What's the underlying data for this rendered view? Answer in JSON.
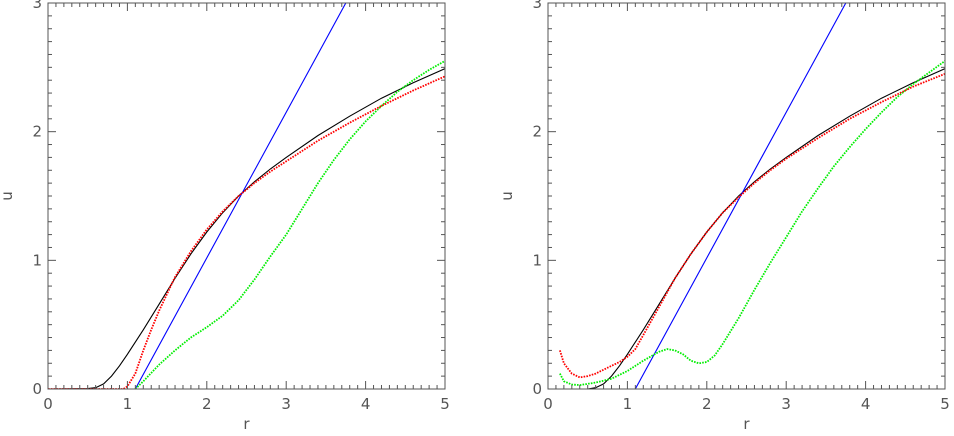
{
  "chart_data": [
    {
      "type": "line",
      "title": "",
      "xlabel": "r",
      "ylabel": "u",
      "xlim": [
        0,
        5
      ],
      "ylim": [
        0,
        3
      ],
      "x_ticks": [
        "0",
        "1",
        "2",
        "3",
        "4",
        "5"
      ],
      "y_ticks": [
        "0",
        "1",
        "2",
        "3"
      ],
      "grid": false,
      "series": [
        {
          "color": "#000000",
          "style": "solid",
          "points": [
            [
              0,
              0
            ],
            [
              0.5,
              0.003
            ],
            [
              0.6,
              0.01
            ],
            [
              0.7,
              0.04
            ],
            [
              0.8,
              0.1
            ],
            [
              0.9,
              0.18
            ],
            [
              1.0,
              0.27
            ],
            [
              1.2,
              0.46
            ],
            [
              1.4,
              0.66
            ],
            [
              1.6,
              0.86
            ],
            [
              1.8,
              1.05
            ],
            [
              2.0,
              1.22
            ],
            [
              2.2,
              1.37
            ],
            [
              2.4,
              1.5
            ],
            [
              2.6,
              1.61
            ],
            [
              2.8,
              1.71
            ],
            [
              3.0,
              1.8
            ],
            [
              3.4,
              1.97
            ],
            [
              3.8,
              2.12
            ],
            [
              4.2,
              2.26
            ],
            [
              4.6,
              2.38
            ],
            [
              5.0,
              2.49
            ]
          ]
        },
        {
          "color": "#0000ff",
          "style": "solid",
          "points": [
            [
              1.1,
              0
            ],
            [
              3.75,
              3
            ]
          ]
        },
        {
          "color": "#00ee00",
          "style": "dotted",
          "points": [
            [
              1.1,
              0
            ],
            [
              1.2,
              0.06
            ],
            [
              1.4,
              0.19
            ],
            [
              1.6,
              0.3
            ],
            [
              1.8,
              0.4
            ],
            [
              2.0,
              0.48
            ],
            [
              2.2,
              0.57
            ],
            [
              2.4,
              0.69
            ],
            [
              2.6,
              0.85
            ],
            [
              2.8,
              1.03
            ],
            [
              3.0,
              1.2
            ],
            [
              3.2,
              1.4
            ],
            [
              3.4,
              1.6
            ],
            [
              3.6,
              1.78
            ],
            [
              3.8,
              1.94
            ],
            [
              4.0,
              2.08
            ],
            [
              4.2,
              2.2
            ],
            [
              4.4,
              2.31
            ],
            [
              4.6,
              2.4
            ],
            [
              4.8,
              2.48
            ],
            [
              5.0,
              2.55
            ]
          ]
        },
        {
          "color": "#ff0000",
          "style": "dotted",
          "points": [
            [
              0,
              0
            ],
            [
              0.95,
              0
            ],
            [
              1.0,
              0.02
            ],
            [
              1.1,
              0.12
            ],
            [
              1.2,
              0.3
            ],
            [
              1.3,
              0.46
            ],
            [
              1.4,
              0.61
            ],
            [
              1.6,
              0.87
            ],
            [
              1.8,
              1.07
            ],
            [
              2.0,
              1.24
            ],
            [
              2.2,
              1.38
            ],
            [
              2.4,
              1.5
            ],
            [
              2.6,
              1.6
            ],
            [
              2.8,
              1.69
            ],
            [
              3.0,
              1.77
            ],
            [
              3.4,
              1.93
            ],
            [
              3.8,
              2.07
            ],
            [
              4.2,
              2.2
            ],
            [
              4.6,
              2.32
            ],
            [
              5.0,
              2.43
            ]
          ]
        }
      ]
    },
    {
      "type": "line",
      "title": "",
      "xlabel": "r",
      "ylabel": "u",
      "xlim": [
        0,
        5
      ],
      "ylim": [
        0,
        3
      ],
      "x_ticks": [
        "0",
        "1",
        "2",
        "3",
        "4",
        "5"
      ],
      "y_ticks": [
        "0",
        "1",
        "2",
        "3"
      ],
      "grid": false,
      "series": [
        {
          "color": "#000000",
          "style": "solid",
          "points": [
            [
              0.5,
              0
            ],
            [
              0.6,
              0.01
            ],
            [
              0.7,
              0.04
            ],
            [
              0.8,
              0.1
            ],
            [
              0.9,
              0.18
            ],
            [
              1.0,
              0.27
            ],
            [
              1.2,
              0.46
            ],
            [
              1.4,
              0.66
            ],
            [
              1.6,
              0.86
            ],
            [
              1.8,
              1.05
            ],
            [
              2.0,
              1.22
            ],
            [
              2.2,
              1.37
            ],
            [
              2.4,
              1.5
            ],
            [
              2.6,
              1.61
            ],
            [
              2.8,
              1.71
            ],
            [
              3.0,
              1.8
            ],
            [
              3.4,
              1.97
            ],
            [
              3.8,
              2.12
            ],
            [
              4.2,
              2.26
            ],
            [
              4.6,
              2.38
            ],
            [
              5.0,
              2.49
            ]
          ]
        },
        {
          "color": "#0000ff",
          "style": "solid",
          "points": [
            [
              1.1,
              0
            ],
            [
              3.75,
              3
            ]
          ]
        },
        {
          "color": "#00ee00",
          "style": "dotted",
          "points": [
            [
              0.15,
              0.12
            ],
            [
              0.2,
              0.06
            ],
            [
              0.3,
              0.035
            ],
            [
              0.4,
              0.03
            ],
            [
              0.6,
              0.05
            ],
            [
              0.8,
              0.08
            ],
            [
              1.0,
              0.14
            ],
            [
              1.2,
              0.22
            ],
            [
              1.4,
              0.29
            ],
            [
              1.5,
              0.31
            ],
            [
              1.6,
              0.3
            ],
            [
              1.7,
              0.27
            ],
            [
              1.8,
              0.22
            ],
            [
              1.9,
              0.2
            ],
            [
              2.0,
              0.21
            ],
            [
              2.1,
              0.26
            ],
            [
              2.2,
              0.35
            ],
            [
              2.4,
              0.55
            ],
            [
              2.6,
              0.77
            ],
            [
              2.8,
              0.98
            ],
            [
              3.0,
              1.18
            ],
            [
              3.2,
              1.38
            ],
            [
              3.4,
              1.56
            ],
            [
              3.6,
              1.73
            ],
            [
              3.8,
              1.88
            ],
            [
              4.0,
              2.02
            ],
            [
              4.2,
              2.15
            ],
            [
              4.4,
              2.27
            ],
            [
              4.6,
              2.37
            ],
            [
              4.8,
              2.46
            ],
            [
              5.0,
              2.55
            ]
          ]
        },
        {
          "color": "#ff0000",
          "style": "dotted",
          "points": [
            [
              0.15,
              0.3
            ],
            [
              0.2,
              0.2
            ],
            [
              0.3,
              0.12
            ],
            [
              0.4,
              0.09
            ],
            [
              0.5,
              0.1
            ],
            [
              0.6,
              0.12
            ],
            [
              0.7,
              0.15
            ],
            [
              0.8,
              0.18
            ],
            [
              0.9,
              0.21
            ],
            [
              1.0,
              0.25
            ],
            [
              1.1,
              0.31
            ],
            [
              1.2,
              0.42
            ],
            [
              1.4,
              0.64
            ],
            [
              1.6,
              0.86
            ],
            [
              1.8,
              1.05
            ],
            [
              2.0,
              1.22
            ],
            [
              2.2,
              1.37
            ],
            [
              2.4,
              1.49
            ],
            [
              2.6,
              1.6
            ],
            [
              2.8,
              1.7
            ],
            [
              3.0,
              1.79
            ],
            [
              3.4,
              1.95
            ],
            [
              3.8,
              2.1
            ],
            [
              4.2,
              2.23
            ],
            [
              4.6,
              2.35
            ],
            [
              5.0,
              2.45
            ]
          ]
        }
      ]
    }
  ]
}
